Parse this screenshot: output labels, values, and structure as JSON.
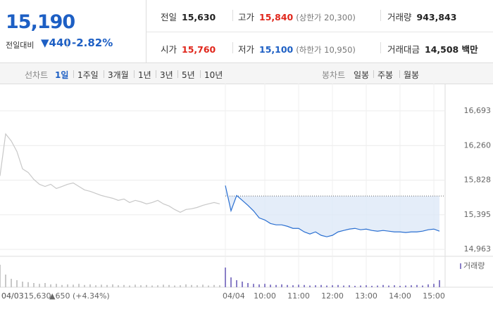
{
  "header": {
    "price": "15,190",
    "change_label": "전일대비",
    "change": "▼440",
    "change_rate": "-2.82%"
  },
  "quote": {
    "rows": [
      [
        {
          "label": "전일",
          "value": "15,630"
        },
        {
          "label": "고가",
          "value": "15,840",
          "note": "(상한가 20,300)"
        },
        {
          "label": "거래량",
          "value": "943,843"
        }
      ],
      [
        {
          "label": "시가",
          "value": "15,760"
        },
        {
          "label": "저가",
          "value": "15,100",
          "note": "(하한가 10,950)"
        },
        {
          "label": "거래대금",
          "value": "14,508 백만"
        }
      ]
    ]
  },
  "tabs": {
    "line_label": "선차트",
    "line_periods": [
      "1일",
      "1주일",
      "3개월",
      "1년",
      "3년",
      "5년",
      "10년"
    ],
    "candle_label": "봉차트",
    "candle_periods": [
      "일봉",
      "주봉",
      "월봉"
    ]
  },
  "chart_data": {
    "type": "line",
    "categories": [
      "04/03",
      null,
      null,
      null,
      null,
      null,
      null,
      null,
      null,
      null,
      null,
      null,
      null,
      null,
      null,
      null,
      null,
      null,
      null,
      null,
      null,
      null,
      null,
      null,
      null,
      null,
      null,
      null,
      null,
      null,
      null,
      null,
      null,
      null,
      null,
      null,
      null,
      null,
      null,
      null,
      "04/04",
      null,
      null,
      null,
      null,
      null,
      null,
      "10:00",
      null,
      null,
      null,
      null,
      null,
      "11:00",
      null,
      null,
      null,
      null,
      null,
      "12:00",
      null,
      null,
      null,
      null,
      null,
      "13:00",
      null,
      null,
      null,
      null,
      null,
      "14:00",
      null,
      null,
      null,
      null,
      null,
      "15:00",
      null
    ],
    "series": [
      {
        "color": "#c8c8c8",
        "values": [
          15880,
          16405,
          16317,
          16186,
          15968,
          15924,
          15837,
          15776,
          15749,
          15776,
          15723,
          15749,
          15776,
          15793,
          15749,
          15706,
          15688,
          15662,
          15636,
          15618,
          15601,
          15575,
          15592,
          15548,
          15575,
          15557,
          15531,
          15548,
          15575,
          15531,
          15505,
          15461,
          15426,
          15461,
          15470,
          15487,
          15513,
          15531,
          15548,
          15531,
          null,
          null,
          null,
          null,
          null,
          null,
          null,
          null,
          null,
          null,
          null,
          null,
          null,
          null,
          null,
          null,
          null,
          null,
          null,
          null,
          null,
          null,
          null,
          null,
          null,
          null,
          null,
          null,
          null,
          null,
          null,
          null,
          null,
          null,
          null,
          null,
          null,
          null,
          null
        ]
      },
      {
        "color": "#2a6fd1",
        "values": [
          null,
          null,
          null,
          null,
          null,
          null,
          null,
          null,
          null,
          null,
          null,
          null,
          null,
          null,
          null,
          null,
          null,
          null,
          null,
          null,
          null,
          null,
          null,
          null,
          null,
          null,
          null,
          null,
          null,
          null,
          null,
          null,
          null,
          null,
          null,
          null,
          null,
          null,
          null,
          null,
          15760,
          15444,
          15636,
          15575,
          15513,
          15444,
          15356,
          15330,
          15286,
          15269,
          15269,
          15251,
          15225,
          15225,
          15181,
          15155,
          15181,
          15138,
          15120,
          15138,
          15181,
          15199,
          15216,
          15225,
          15208,
          15216,
          15199,
          15190,
          15199,
          15190,
          15181,
          15181,
          15173,
          15181,
          15181,
          15190,
          15208,
          15216,
          15190
        ]
      }
    ],
    "baseline": 15630,
    "ylim": [
      14876,
      16973
    ],
    "yticks": [
      {
        "value": 14963,
        "label": "14,963"
      },
      {
        "value": 15395,
        "label": "15,395"
      },
      {
        "value": 15828,
        "label": "15,828"
      },
      {
        "value": 16260,
        "label": "16,260"
      },
      {
        "value": 16693,
        "label": "16,693"
      }
    ],
    "grid": true,
    "volume": {
      "name": "거래량",
      "ylim": [
        0,
        100
      ],
      "values": [
        80,
        45,
        30,
        25,
        20,
        18,
        15,
        12,
        15,
        10,
        12,
        8,
        10,
        9,
        12,
        8,
        10,
        7,
        9,
        8,
        10,
        7,
        8,
        6,
        9,
        7,
        8,
        6,
        7,
        9,
        8,
        6,
        7,
        10,
        8,
        7,
        9,
        6,
        8,
        7,
        70,
        35,
        25,
        20,
        15,
        12,
        10,
        12,
        9,
        8,
        10,
        8,
        7,
        9,
        8,
        6,
        7,
        8,
        6,
        7,
        8,
        6,
        7,
        5,
        6,
        7,
        5,
        6,
        8,
        6,
        7,
        5,
        6,
        7,
        8,
        6,
        10,
        12,
        25
      ]
    },
    "footer": {
      "date": "04/03",
      "close": "15,630",
      "change": "▲650 (+4.34%)"
    }
  }
}
